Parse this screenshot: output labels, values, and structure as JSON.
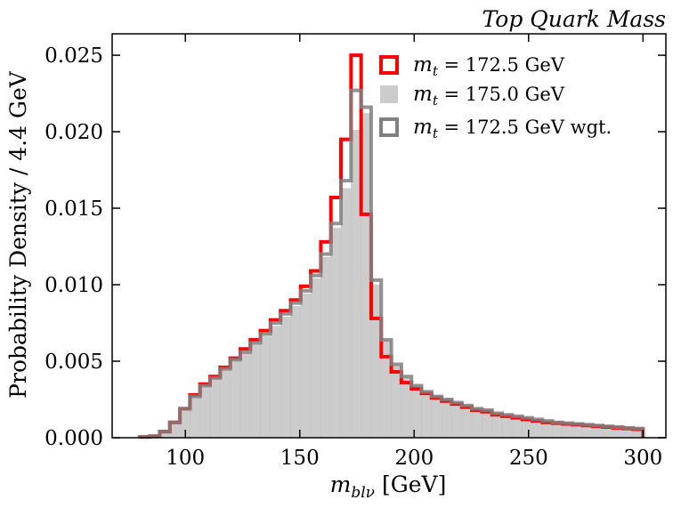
{
  "chart_data": {
    "type": "histogram",
    "title": "Top Quark Mass",
    "xlabel_math": "m",
    "xlabel_sub": "blν",
    "xlabel_unit": "[GeV]",
    "ylabel": "Probability Density / 4.4 GeV",
    "xlim": [
      68,
      310
    ],
    "ylim": [
      0,
      0.0264
    ],
    "xticks": [
      100,
      150,
      200,
      250,
      300
    ],
    "yticks": [
      0.0,
      0.005,
      0.01,
      0.015,
      0.02,
      0.025
    ],
    "ytick_labels": [
      "0.000",
      "0.005",
      "0.010",
      "0.015",
      "0.020",
      "0.025"
    ],
    "bin_start": 80,
    "bin_width": 4.4,
    "legend_position": "upper-right",
    "grid": false,
    "series": [
      {
        "name_math": "m",
        "name_sub": "t",
        "name_text": " = 172.5 GeV",
        "style": "step",
        "color": "#ff0000",
        "values": [
          5e-05,
          0.0001,
          0.0004,
          0.001,
          0.0019,
          0.0028,
          0.0035,
          0.004,
          0.0046,
          0.0052,
          0.0058,
          0.0064,
          0.007,
          0.0077,
          0.0083,
          0.009,
          0.0099,
          0.0109,
          0.0128,
          0.0157,
          0.0195,
          0.025,
          0.0146,
          0.0078,
          0.0053,
          0.0043,
          0.0036,
          0.0032,
          0.0029,
          0.0026,
          0.0024,
          0.0022,
          0.002,
          0.0018,
          0.0017,
          0.0015,
          0.0014,
          0.0013,
          0.0012,
          0.0011,
          0.001,
          0.00095,
          0.0009,
          0.00085,
          0.0008,
          0.00075,
          0.0007,
          0.00065,
          0.0006,
          0.00055
        ]
      },
      {
        "name_math": "m",
        "name_sub": "t",
        "name_text": " = 175.0 GeV",
        "style": "filled",
        "color": "#cccccc",
        "values": [
          5e-05,
          0.0001,
          0.0004,
          0.001,
          0.0018,
          0.0026,
          0.0033,
          0.0038,
          0.0044,
          0.005,
          0.0055,
          0.0061,
          0.0067,
          0.0073,
          0.0079,
          0.0086,
          0.0094,
          0.0104,
          0.0118,
          0.0137,
          0.0163,
          0.0201,
          0.0212,
          0.01,
          0.0063,
          0.0047,
          0.0039,
          0.0034,
          0.003,
          0.0027,
          0.0025,
          0.0023,
          0.0021,
          0.0019,
          0.0018,
          0.0016,
          0.0015,
          0.0014,
          0.0013,
          0.0012,
          0.0011,
          0.001,
          0.00095,
          0.0009,
          0.00085,
          0.0008,
          0.00075,
          0.0007,
          0.00065,
          0.0006
        ]
      },
      {
        "name_math": "m",
        "name_sub": "t",
        "name_text": " = 172.5 GeV wgt.",
        "style": "step",
        "color": "#808080",
        "values": [
          5e-05,
          0.0001,
          0.0004,
          0.001,
          0.0019,
          0.0027,
          0.0034,
          0.0039,
          0.0045,
          0.0051,
          0.0056,
          0.0062,
          0.0068,
          0.0075,
          0.0081,
          0.0088,
          0.0096,
          0.0106,
          0.012,
          0.014,
          0.0168,
          0.0227,
          0.0216,
          0.0103,
          0.0064,
          0.0048,
          0.004,
          0.0034,
          0.003,
          0.0027,
          0.0025,
          0.0023,
          0.0021,
          0.0019,
          0.0018,
          0.0016,
          0.0015,
          0.0014,
          0.0013,
          0.0012,
          0.0011,
          0.001,
          0.00095,
          0.0009,
          0.00085,
          0.0008,
          0.00075,
          0.0007,
          0.00065,
          0.0006
        ]
      }
    ]
  }
}
